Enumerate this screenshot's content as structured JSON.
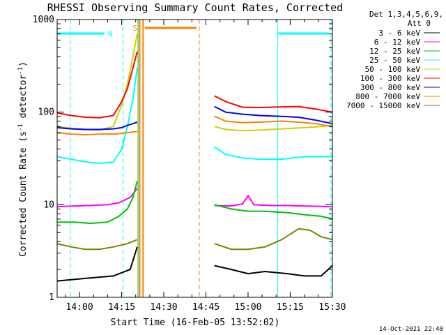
{
  "chart_data": {
    "type": "line",
    "title": "RHESSI Observing Summary Count Rates, Corrected",
    "xlabel": "Start Time (16-Feb-05 13:52:02)",
    "ylabel_main": "Corrected Count Rate (s",
    "ylabel_sup1": "-1",
    "ylabel_mid": " detector",
    "ylabel_sup2": "-1",
    "ylabel_end": ")",
    "y_scale": "log",
    "ylim": [
      1,
      1000
    ],
    "xlim_minutes": [
      0,
      98
    ],
    "x_ticks": [
      {
        "label": "14:00",
        "minute": 7.97
      },
      {
        "label": "14:15",
        "minute": 22.97
      },
      {
        "label": "14:30",
        "minute": 37.97
      },
      {
        "label": "14:45",
        "minute": 52.97
      },
      {
        "label": "15:00",
        "minute": 67.97
      },
      {
        "label": "15:15",
        "minute": 82.97
      },
      {
        "label": "15:30",
        "minute": 97.97
      }
    ],
    "y_ticks": [
      {
        "label": "1",
        "value": 1
      },
      {
        "label": "10",
        "value": 10
      },
      {
        "label": "100",
        "value": 100
      },
      {
        "label": "1000",
        "value": 1000
      }
    ],
    "legend_header": [
      "Det 1,3,4,5,6,9,",
      "Att 0"
    ],
    "legend_position": "right",
    "series": [
      {
        "name": "3 - 6 keV",
        "color": "#000000",
        "points": [
          [
            0,
            1.5
          ],
          [
            10,
            1.6
          ],
          [
            20,
            1.7
          ],
          [
            26,
            2.0
          ],
          [
            28.5,
            3.5
          ],
          [
            50,
            null
          ],
          [
            56,
            2.2
          ],
          [
            62,
            2.0
          ],
          [
            68,
            1.8
          ],
          [
            74,
            1.9
          ],
          [
            82,
            1.8
          ],
          [
            88,
            1.7
          ],
          [
            94,
            1.7
          ],
          [
            98,
            2.2
          ]
        ]
      },
      {
        "name": "6 - 12 keV",
        "color": "#ff00ff",
        "points": [
          [
            0,
            9.5
          ],
          [
            6,
            9.7
          ],
          [
            12,
            9.8
          ],
          [
            18,
            10
          ],
          [
            22,
            10.5
          ],
          [
            26,
            12
          ],
          [
            28.5,
            15
          ],
          [
            50,
            null
          ],
          [
            56,
            9.8
          ],
          [
            62,
            9.7
          ],
          [
            66,
            10.2
          ],
          [
            68,
            12.5
          ],
          [
            70,
            10
          ],
          [
            76,
            9.8
          ],
          [
            82,
            9.8
          ],
          [
            88,
            9.7
          ],
          [
            94,
            9.6
          ],
          [
            98,
            9.5
          ]
        ]
      },
      {
        "name": "12 - 25 keV",
        "color": "#00c000",
        "points": [
          [
            0,
            6.5
          ],
          [
            6,
            6.5
          ],
          [
            12,
            6.3
          ],
          [
            18,
            6.5
          ],
          [
            22,
            7.5
          ],
          [
            25,
            9
          ],
          [
            27,
            12
          ],
          [
            28.5,
            18
          ],
          [
            50,
            null
          ],
          [
            56,
            10
          ],
          [
            62,
            9
          ],
          [
            68,
            8.5
          ],
          [
            74,
            8.5
          ],
          [
            82,
            8.2
          ],
          [
            88,
            7.8
          ],
          [
            94,
            7.5
          ],
          [
            98,
            7
          ]
        ]
      },
      {
        "name": "25 - 50 keV",
        "color": "#00ffff",
        "points": [
          [
            0,
            33
          ],
          [
            5,
            31
          ],
          [
            10,
            29
          ],
          [
            15,
            28
          ],
          [
            20,
            29
          ],
          [
            23,
            40
          ],
          [
            25,
            70
          ],
          [
            27,
            140
          ],
          [
            28.5,
            300
          ],
          [
            50,
            null
          ],
          [
            56,
            42
          ],
          [
            60,
            35
          ],
          [
            66,
            32
          ],
          [
            72,
            31
          ],
          [
            80,
            31
          ],
          [
            88,
            33
          ],
          [
            94,
            33
          ],
          [
            98,
            33
          ]
        ]
      },
      {
        "name": "50 - 100 keV",
        "color": "#d0d000",
        "points": [
          [
            0,
            70
          ],
          [
            5,
            67
          ],
          [
            10,
            65
          ],
          [
            15,
            64
          ],
          [
            20,
            70
          ],
          [
            23,
            120
          ],
          [
            25,
            200
          ],
          [
            27,
            400
          ],
          [
            28.5,
            700
          ],
          [
            50,
            null
          ],
          [
            56,
            70
          ],
          [
            60,
            65
          ],
          [
            66,
            63
          ],
          [
            72,
            64
          ],
          [
            80,
            66
          ],
          [
            88,
            68
          ],
          [
            94,
            70
          ],
          [
            98,
            72
          ]
        ]
      },
      {
        "name": "100 - 300 keV",
        "color": "#ff0000",
        "points": [
          [
            0,
            98
          ],
          [
            5,
            92
          ],
          [
            10,
            88
          ],
          [
            15,
            87
          ],
          [
            20,
            92
          ],
          [
            23,
            130
          ],
          [
            25,
            180
          ],
          [
            27,
            300
          ],
          [
            28.5,
            450
          ],
          [
            50,
            null
          ],
          [
            56,
            150
          ],
          [
            60,
            130
          ],
          [
            66,
            113
          ],
          [
            72,
            112
          ],
          [
            80,
            114
          ],
          [
            86,
            115
          ],
          [
            92,
            108
          ],
          [
            98,
            100
          ]
        ]
      },
      {
        "name": "300 - 800 keV",
        "color": "#0000ff",
        "points": [
          [
            0,
            68
          ],
          [
            5,
            66
          ],
          [
            10,
            65
          ],
          [
            15,
            65
          ],
          [
            20,
            66
          ],
          [
            23,
            68
          ],
          [
            25,
            72
          ],
          [
            27,
            75
          ],
          [
            28.5,
            78
          ],
          [
            50,
            null
          ],
          [
            56,
            115
          ],
          [
            60,
            100
          ],
          [
            66,
            95
          ],
          [
            72,
            92
          ],
          [
            80,
            90
          ],
          [
            86,
            88
          ],
          [
            92,
            82
          ],
          [
            98,
            75
          ]
        ]
      },
      {
        "name": "800 - 7000 keV",
        "color": "#ff8000",
        "points": [
          [
            0,
            60
          ],
          [
            5,
            58
          ],
          [
            10,
            57
          ],
          [
            15,
            58
          ],
          [
            20,
            58
          ],
          [
            23,
            59
          ],
          [
            25,
            60
          ],
          [
            27,
            61
          ],
          [
            28.5,
            62
          ],
          [
            50,
            null
          ],
          [
            56,
            90
          ],
          [
            60,
            80
          ],
          [
            66,
            77
          ],
          [
            72,
            78
          ],
          [
            80,
            80
          ],
          [
            86,
            78
          ],
          [
            92,
            75
          ],
          [
            98,
            70
          ]
        ]
      },
      {
        "name": "7000 - 15000 keV",
        "color": "#808000",
        "points": [
          [
            0,
            3.8
          ],
          [
            5,
            3.5
          ],
          [
            10,
            3.3
          ],
          [
            15,
            3.3
          ],
          [
            20,
            3.5
          ],
          [
            25,
            3.8
          ],
          [
            28.5,
            4.2
          ],
          [
            50,
            null
          ],
          [
            56,
            3.8
          ],
          [
            62,
            3.3
          ],
          [
            68,
            3.3
          ],
          [
            74,
            3.5
          ],
          [
            80,
            4.2
          ],
          [
            86,
            5.5
          ],
          [
            90,
            5.3
          ],
          [
            94,
            4.5
          ],
          [
            98,
            4.2
          ]
        ]
      }
    ],
    "annotations": [
      {
        "text": "N",
        "color": "#00ffff"
      },
      {
        "text": "S",
        "color": "#ff8000"
      }
    ]
  },
  "footer": {
    "timestamp": "14-Oct-2021 22:40"
  },
  "colors": {
    "cyan": "#00ffff",
    "orange": "#ff8000",
    "green": "#00c000",
    "axis": "#000000"
  }
}
